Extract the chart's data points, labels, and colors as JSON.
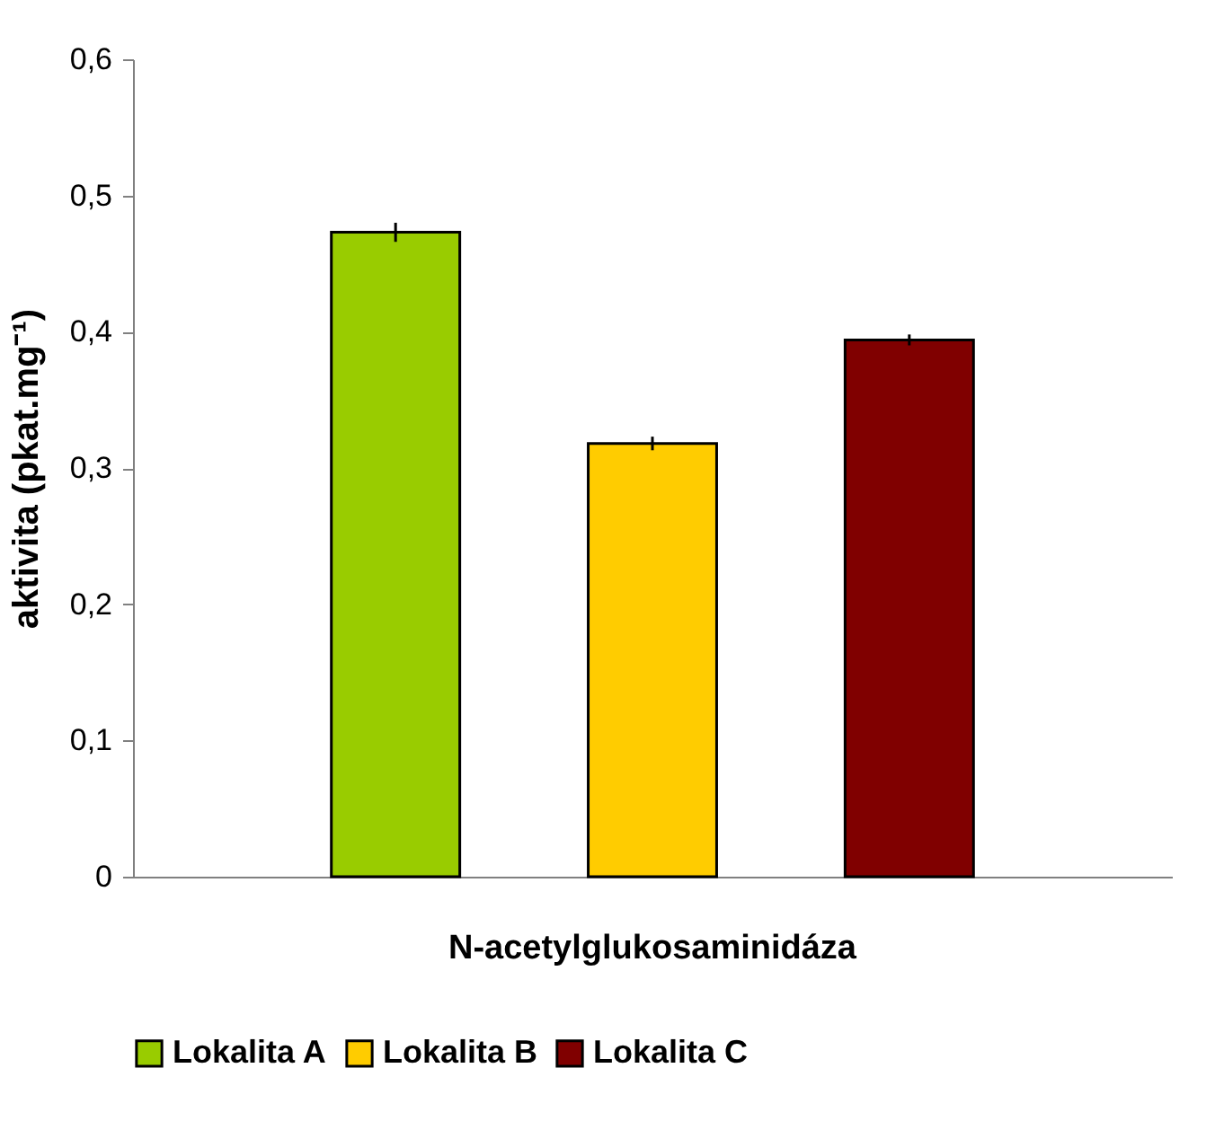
{
  "chart_data": {
    "type": "bar",
    "ylabel": "aktivita (pkat.mg⁻¹)",
    "categories": [
      "N-acetylglukosaminidáza"
    ],
    "series": [
      {
        "name": "Lokalita A",
        "color": "#99cc00",
        "values": [
          0.473
        ],
        "errors": [
          0.007
        ]
      },
      {
        "name": "Lokalita B",
        "color": "#ffcc00",
        "values": [
          0.318
        ],
        "errors": [
          0.005
        ]
      },
      {
        "name": "Lokalita C",
        "color": "#800000",
        "values": [
          0.394
        ],
        "errors": [
          0.004
        ]
      }
    ],
    "ylim": [
      0,
      0.6
    ],
    "yticks": [
      0,
      {
        "value": 0.1,
        "label": "0,1"
      },
      {
        "value": 0.2,
        "label": "0,2"
      },
      {
        "value": 0.3,
        "label": "0,3"
      },
      {
        "value": 0.4,
        "label": "0,4"
      },
      {
        "value": 0.5,
        "label": "0,5"
      },
      {
        "value": 0.6,
        "label": "0,6"
      }
    ],
    "grid": false,
    "legend": "bottom"
  }
}
